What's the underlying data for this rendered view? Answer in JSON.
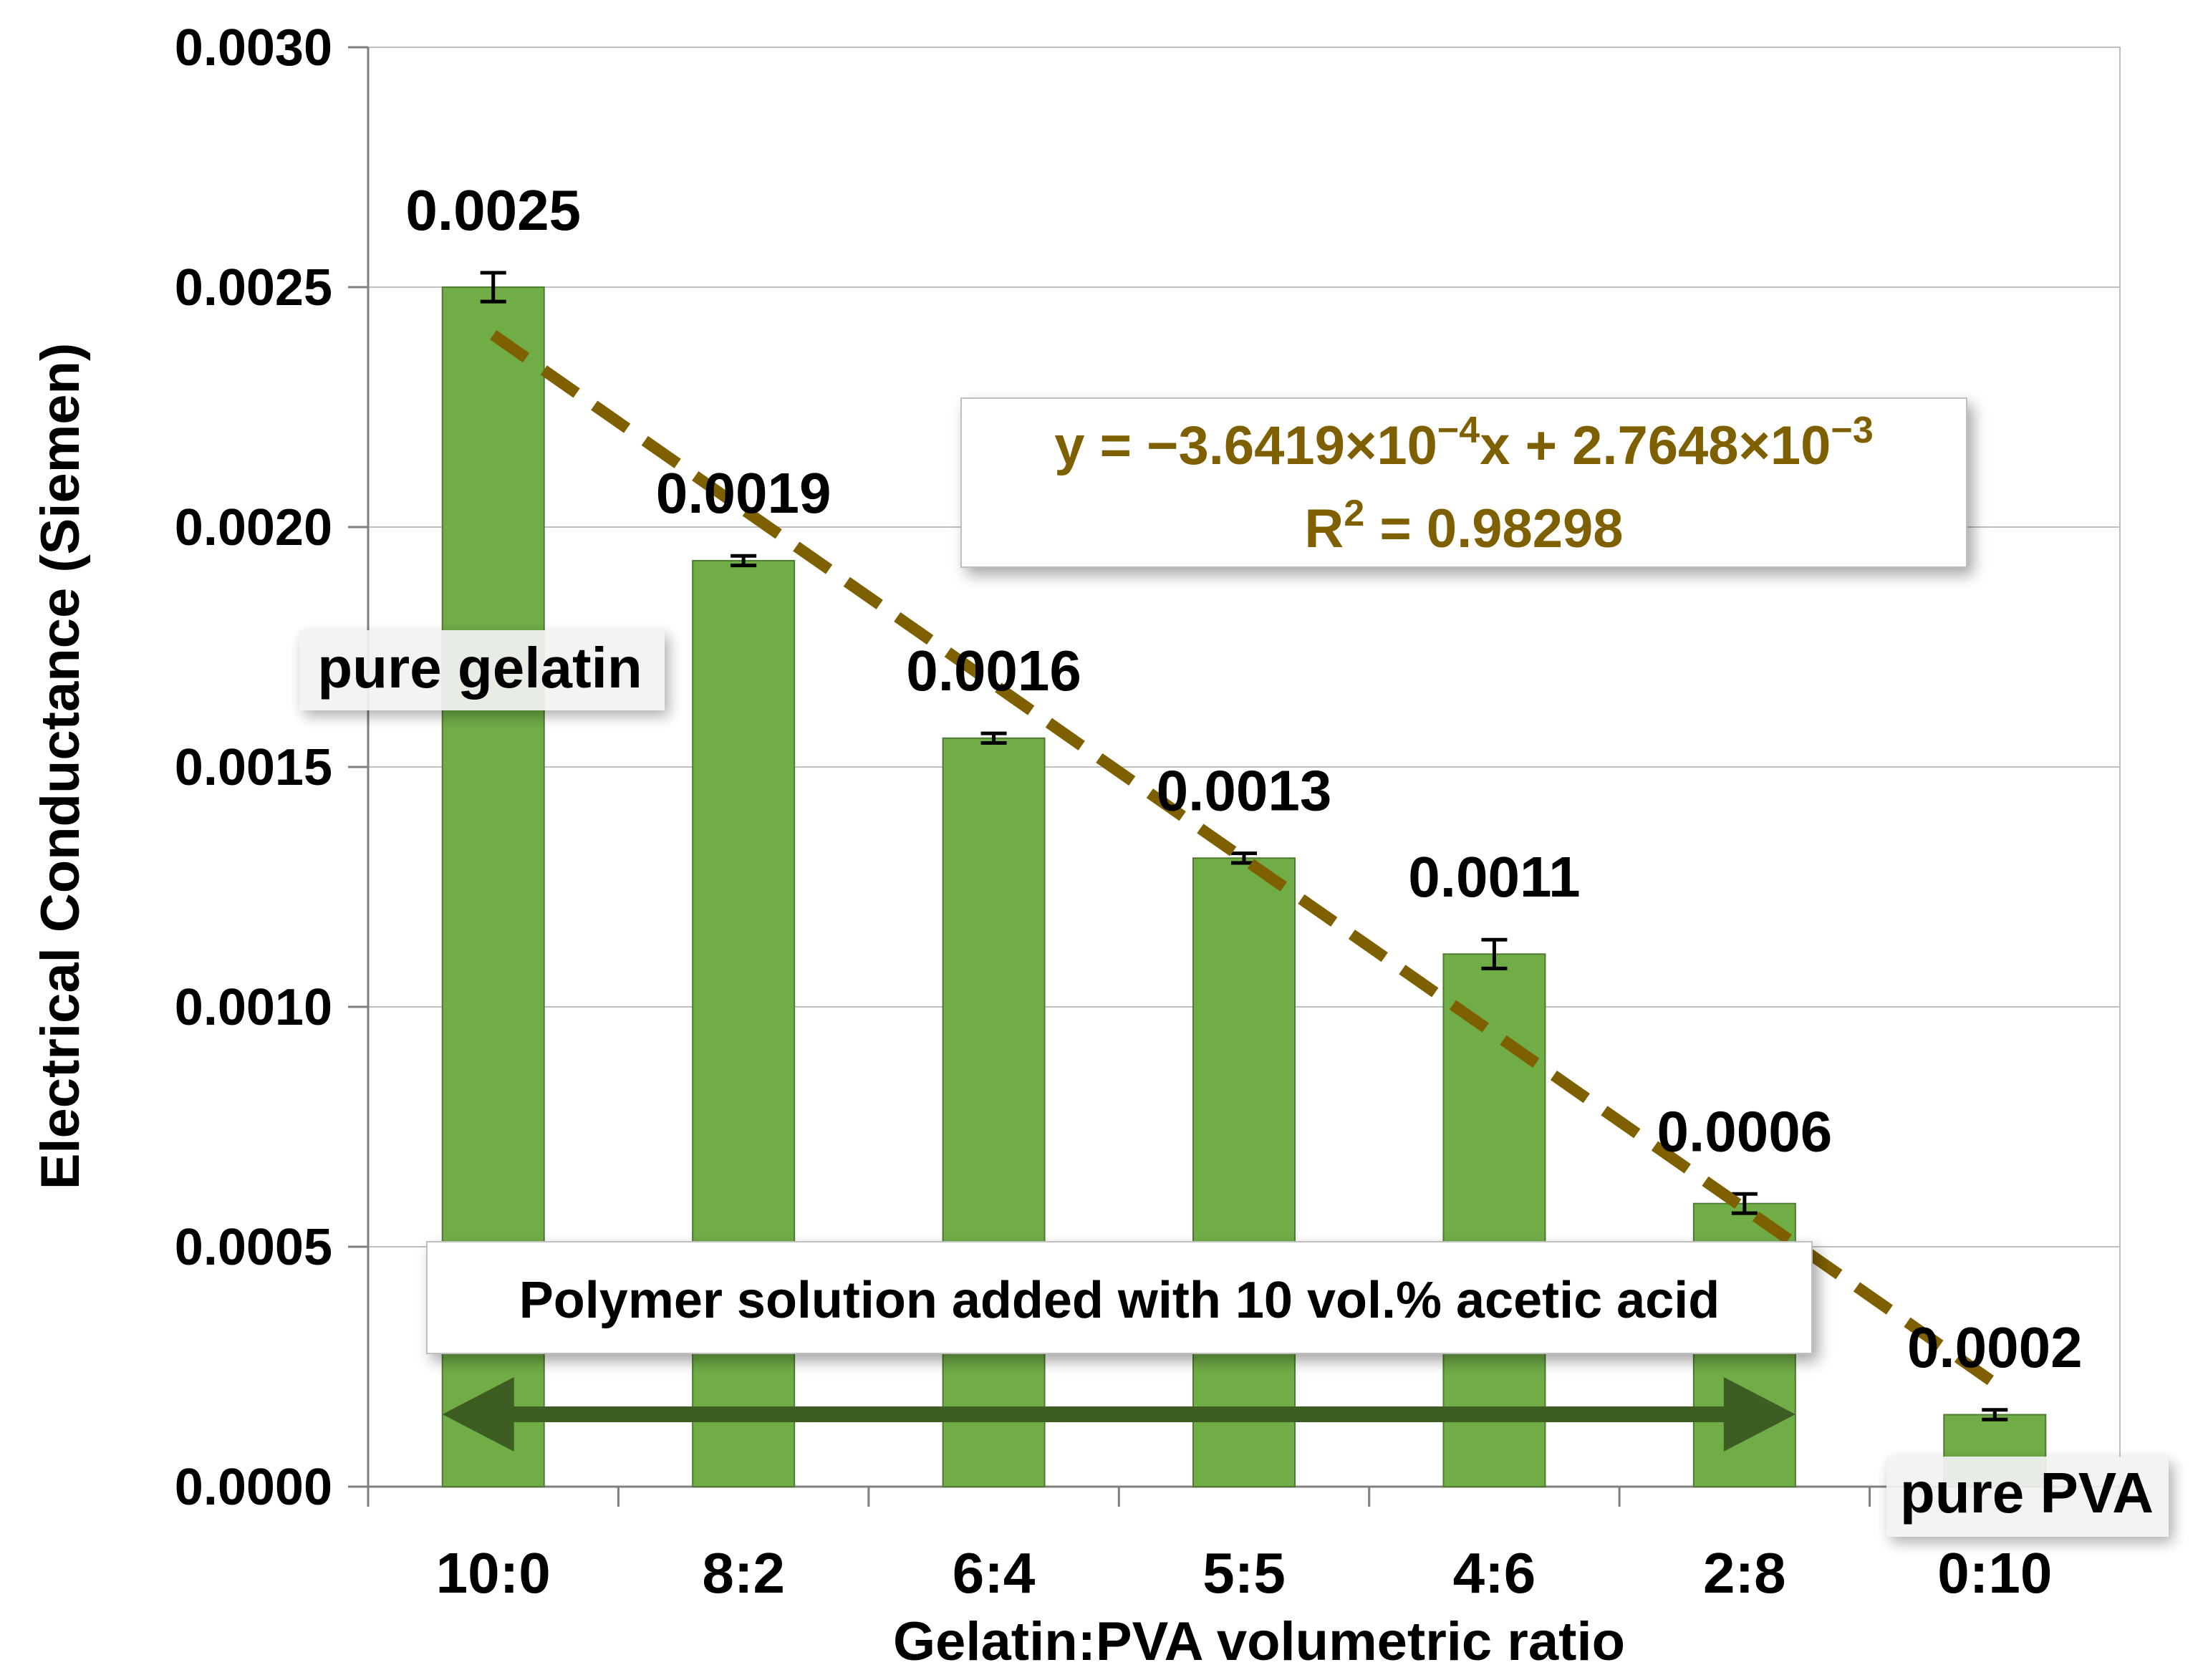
{
  "chart_data": {
    "type": "bar",
    "title": "",
    "xlabel": "Gelatin:PVA volumetric ratio",
    "ylabel": "Electrical Conductance (Siemen)",
    "categories": [
      "10:0",
      "8:2",
      "6:4",
      "5:5",
      "4:6",
      "2:8",
      "0:10"
    ],
    "series": [
      {
        "name": "Electrical Conductance",
        "values": [
          0.0025,
          0.00193,
          0.00156,
          0.00131,
          0.00111,
          0.00059,
          0.00015
        ],
        "errors": [
          3e-05,
          1e-05,
          1e-05,
          1e-05,
          3e-05,
          2e-05,
          1e-05
        ],
        "data_labels": [
          "0.0025",
          "0.0019",
          "0.0016",
          "0.0013",
          "0.0011",
          "0.0006",
          "0.0002"
        ],
        "color": "#70ad47"
      }
    ],
    "ylim": [
      0,
      0.003
    ],
    "yticks": [
      0,
      0.0005,
      0.001,
      0.0015,
      0.002,
      0.0025,
      0.003
    ],
    "ytick_labels": [
      "0.0000",
      "0.0005",
      "0.0010",
      "0.0015",
      "0.0020",
      "0.0025",
      "0.0030"
    ],
    "grid": true,
    "trendline": {
      "type": "linear",
      "slope": -0.00036419,
      "intercept": 0.0027648,
      "equation_prefix": "y = −3.6419×10",
      "equation_exp1": "−4",
      "equation_mid": "x + 2.7648×10",
      "equation_exp2": "−3",
      "r2_prefix": "R",
      "r2_exp": "2",
      "r2_value": " = 0.98298",
      "color": "#7f6000"
    },
    "annotations": {
      "pure_gelatin": "pure gelatin",
      "pure_pva": "pure PVA",
      "range_note": "Polymer solution added with 10 vol.% acetic acid"
    },
    "arrow_color": "#3d5d23"
  }
}
